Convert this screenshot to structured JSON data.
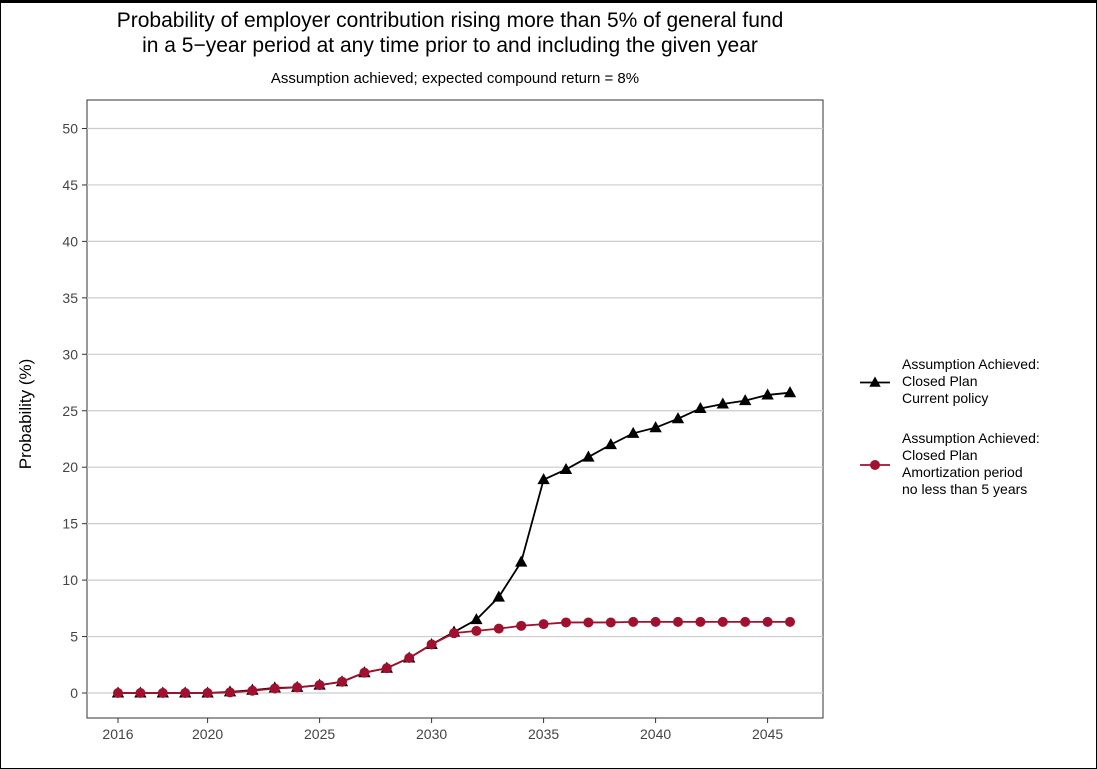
{
  "chart_data": {
    "type": "line",
    "title_line1": "Probability of employer contribution rising more than 5% of general fund",
    "title_line2": "in a 5−year period at any time prior to and including the given year",
    "subtitle": "Assumption achieved; expected compound return = 8%",
    "xlabel": "",
    "ylabel": "Probability (%)",
    "xlim": [
      2016,
      2046
    ],
    "ylim": [
      0,
      50
    ],
    "x_ticks": [
      2016,
      2020,
      2025,
      2030,
      2035,
      2040,
      2045
    ],
    "y_ticks": [
      0,
      5,
      10,
      15,
      20,
      25,
      30,
      35,
      40,
      45,
      50
    ],
    "grid": "horizontal",
    "legend_position": "right",
    "x": [
      2016,
      2017,
      2018,
      2019,
      2020,
      2021,
      2022,
      2023,
      2024,
      2025,
      2026,
      2027,
      2028,
      2029,
      2030,
      2031,
      2032,
      2033,
      2034,
      2035,
      2036,
      2037,
      2038,
      2039,
      2040,
      2041,
      2042,
      2043,
      2044,
      2045,
      2046
    ],
    "series": [
      {
        "name_lines": [
          "Assumption Achieved:",
          "Closed Plan",
          "Current policy"
        ],
        "color": "#000000",
        "marker": "triangle",
        "values": [
          0,
          0,
          0,
          0,
          0,
          0.1,
          0.25,
          0.45,
          0.5,
          0.7,
          1.0,
          1.8,
          2.2,
          3.1,
          4.3,
          5.4,
          6.5,
          8.5,
          11.6,
          18.9,
          19.8,
          20.9,
          22.0,
          23.0,
          23.5,
          24.3,
          25.2,
          25.6,
          25.9,
          26.4,
          26.6
        ]
      },
      {
        "name_lines": [
          "Assumption Achieved:",
          "Closed Plan",
          "Amortization period",
          "no less than 5 years"
        ],
        "color": "#a0112f",
        "marker": "circle",
        "values": [
          0,
          0,
          0,
          0,
          0,
          0.05,
          0.2,
          0.4,
          0.5,
          0.7,
          1.0,
          1.8,
          2.2,
          3.1,
          4.3,
          5.3,
          5.5,
          5.7,
          5.95,
          6.1,
          6.25,
          6.25,
          6.25,
          6.3,
          6.3,
          6.3,
          6.3,
          6.3,
          6.3,
          6.3,
          6.3
        ]
      }
    ]
  }
}
